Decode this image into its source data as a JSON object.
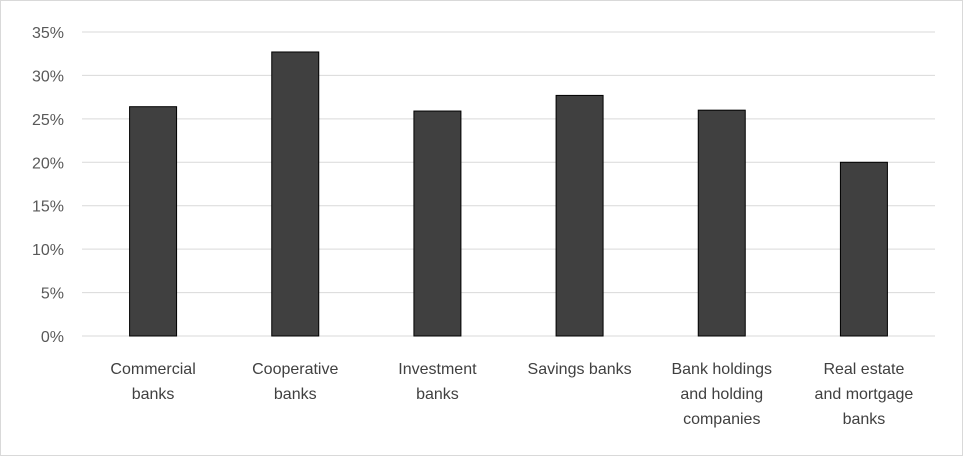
{
  "chart_data": {
    "type": "bar",
    "title": "",
    "xlabel": "",
    "ylabel": "",
    "categories": [
      [
        "Commercial",
        "banks"
      ],
      [
        "Cooperative",
        "banks"
      ],
      [
        "Investment",
        "banks"
      ],
      [
        "Savings banks"
      ],
      [
        "Bank holdings",
        "and holding",
        "companies"
      ],
      [
        "Real estate",
        "and mortgage",
        "banks"
      ]
    ],
    "values": [
      26.4,
      32.7,
      25.9,
      27.7,
      26.0,
      20.0
    ],
    "value_format": "percent",
    "ylim": [
      0,
      35
    ],
    "yticks": [
      0,
      5,
      10,
      15,
      20,
      25,
      30,
      35
    ],
    "ytick_labels": [
      "0%",
      "5%",
      "10%",
      "15%",
      "20%",
      "25%",
      "30%",
      "35%"
    ],
    "grid": true,
    "legend": "none",
    "colors": {
      "bar_fill": "#404040",
      "bar_stroke": "#000000",
      "grid": "#d9d9d9",
      "axis_text": "#595959"
    }
  }
}
